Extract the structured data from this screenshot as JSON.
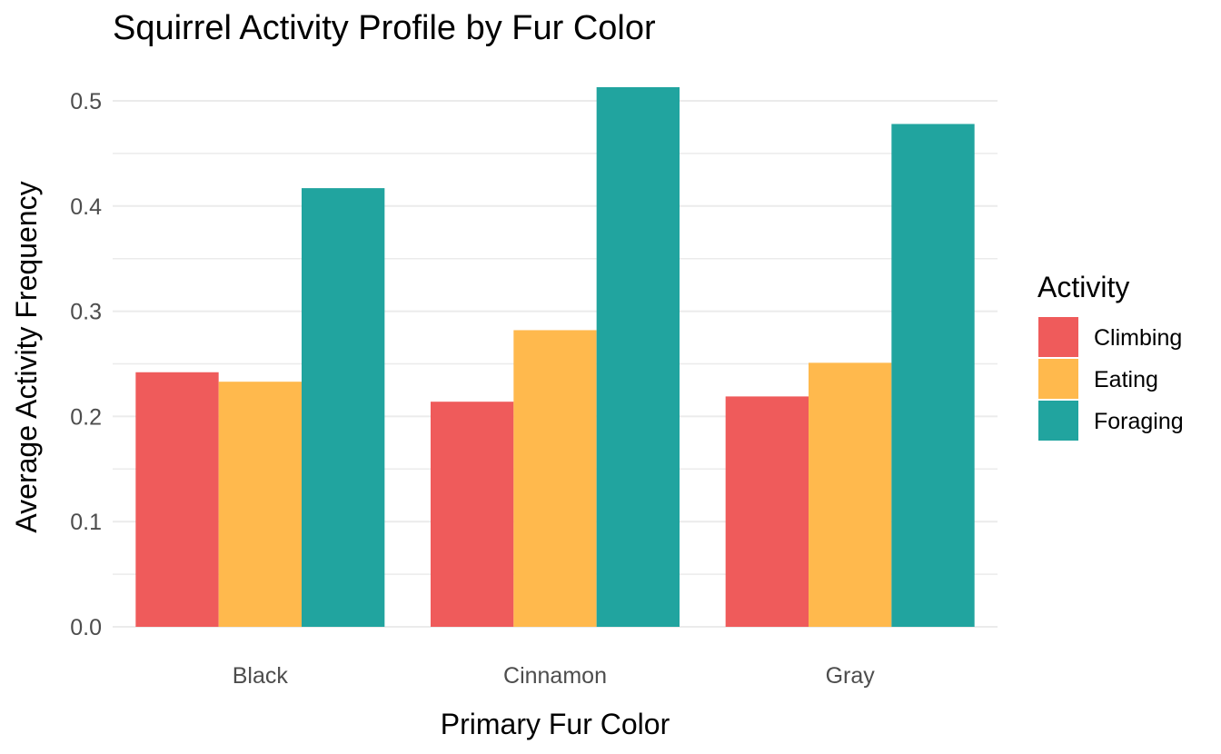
{
  "chart_data": {
    "type": "bar",
    "title": "Squirrel Activity Profile by Fur Color",
    "xlabel": "Primary Fur Color",
    "ylabel": "Average Activity Frequency",
    "categories": [
      "Black",
      "Cinnamon",
      "Gray"
    ],
    "series": [
      {
        "name": "Climbing",
        "color": "#ef5b5b",
        "values": [
          0.242,
          0.214,
          0.219
        ]
      },
      {
        "name": "Eating",
        "color": "#ffb94d",
        "values": [
          0.233,
          0.282,
          0.251
        ]
      },
      {
        "name": "Foraging",
        "color": "#21a49f",
        "values": [
          0.417,
          0.513,
          0.478
        ]
      }
    ],
    "ylim": [
      0,
      0.5
    ],
    "yticks": [
      "0.0",
      "0.1",
      "0.2",
      "0.3",
      "0.4",
      "0.5"
    ],
    "ytick_values": [
      0,
      0.1,
      0.2,
      0.3,
      0.4,
      0.5
    ],
    "grid": true,
    "legend": {
      "title": "Activity",
      "position": "right"
    }
  }
}
